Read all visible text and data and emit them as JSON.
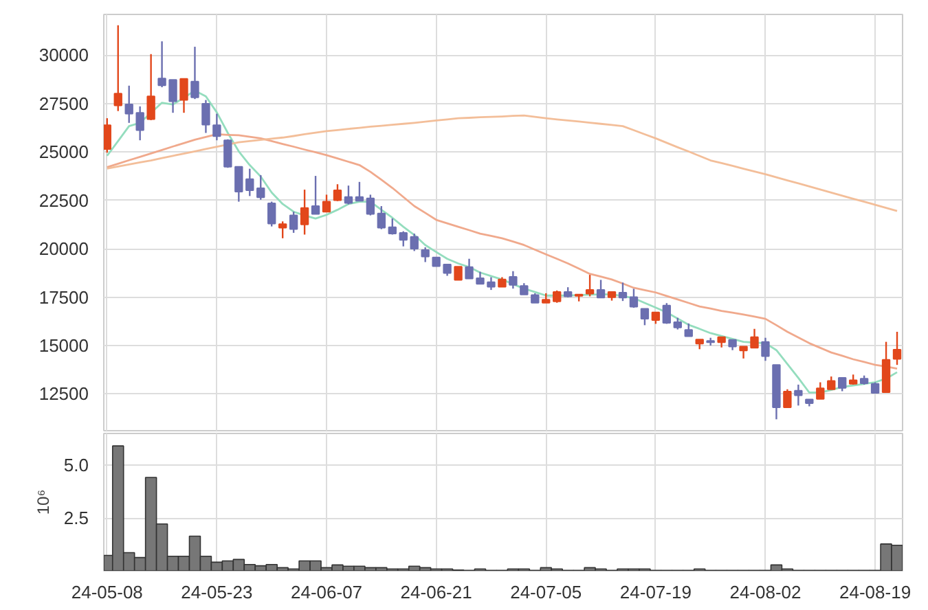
{
  "chart_data": [
    {
      "type": "candlestick",
      "categories": [
        null,
        null,
        null,
        null,
        null,
        null,
        null,
        null,
        null,
        null,
        null,
        null,
        null,
        null,
        null,
        null,
        null,
        null,
        null,
        null,
        null,
        null,
        null,
        null,
        null,
        null,
        null,
        null,
        null,
        null,
        null,
        null,
        null,
        null,
        null,
        null,
        null,
        null,
        null,
        null,
        null,
        null,
        null,
        null,
        null,
        null,
        null,
        null,
        null,
        null,
        null,
        null,
        null,
        null,
        null,
        null,
        null,
        null,
        null,
        null,
        null,
        null,
        null,
        null,
        null,
        null,
        null,
        null,
        null,
        null,
        null,
        null,
        null
      ],
      "ohlc": [
        [
          25150,
          26740,
          24960,
          26380
        ],
        [
          27400,
          31540,
          27110,
          28010
        ],
        [
          27450,
          28420,
          26500,
          26970
        ],
        [
          27020,
          27350,
          25600,
          26120
        ],
        [
          26690,
          30050,
          26640,
          27870
        ],
        [
          28790,
          30710,
          28340,
          28440
        ],
        [
          28720,
          28720,
          27020,
          27610
        ],
        [
          27680,
          28770,
          27020,
          28770
        ],
        [
          28630,
          30430,
          27730,
          27820
        ],
        [
          27490,
          27680,
          25980,
          26410
        ],
        [
          26380,
          26970,
          25600,
          25810
        ],
        [
          25600,
          25650,
          24180,
          24230
        ],
        [
          24230,
          24230,
          22430,
          22950
        ],
        [
          23590,
          24130,
          22720,
          23020
        ],
        [
          23120,
          23800,
          22530,
          22650
        ],
        [
          22340,
          22430,
          21150,
          21300
        ],
        [
          21080,
          21410,
          20540,
          21270
        ],
        [
          21720,
          21910,
          20820,
          21010
        ],
        [
          21250,
          23050,
          20730,
          22100
        ],
        [
          22200,
          23760,
          21790,
          21790
        ],
        [
          21910,
          22790,
          21910,
          22430
        ],
        [
          22500,
          23330,
          22460,
          23020
        ],
        [
          22670,
          23260,
          22290,
          22360
        ],
        [
          22670,
          23450,
          22480,
          22480
        ],
        [
          22600,
          22790,
          21720,
          21790
        ],
        [
          21820,
          22200,
          21010,
          21080
        ],
        [
          21110,
          21560,
          20730,
          20780
        ],
        [
          20820,
          20900,
          20120,
          20450
        ],
        [
          20610,
          20780,
          19880,
          20000
        ],
        [
          19930,
          20070,
          19310,
          19590
        ],
        [
          19550,
          19550,
          19100,
          19100
        ],
        [
          19190,
          19190,
          18600,
          18740
        ],
        [
          18390,
          19070,
          18390,
          19070
        ],
        [
          19050,
          19480,
          18460,
          18460
        ],
        [
          18480,
          18810,
          18180,
          18180
        ],
        [
          18270,
          18530,
          17870,
          18030
        ],
        [
          18030,
          18530,
          18030,
          18410
        ],
        [
          18550,
          18840,
          17940,
          18130
        ],
        [
          18080,
          18220,
          17630,
          17630
        ],
        [
          17610,
          17700,
          17210,
          17210
        ],
        [
          17210,
          17700,
          17210,
          17370
        ],
        [
          17280,
          17840,
          17210,
          17770
        ],
        [
          17770,
          18010,
          17490,
          17540
        ],
        [
          17560,
          17630,
          17280,
          17630
        ],
        [
          17680,
          18650,
          17540,
          17870
        ],
        [
          17870,
          18390,
          17470,
          17470
        ],
        [
          17490,
          17770,
          17320,
          17770
        ],
        [
          17730,
          18250,
          17300,
          17470
        ],
        [
          17500,
          17930,
          16950,
          17000
        ],
        [
          16900,
          16900,
          16050,
          16380
        ],
        [
          16310,
          16710,
          16120,
          16710
        ],
        [
          17070,
          17190,
          16120,
          16170
        ],
        [
          16210,
          16430,
          15830,
          15930
        ],
        [
          15810,
          16140,
          15480,
          15480
        ],
        [
          15100,
          15310,
          14810,
          15310
        ],
        [
          15240,
          15400,
          15000,
          15170
        ],
        [
          15170,
          15430,
          14900,
          15430
        ],
        [
          15290,
          15290,
          14760,
          14950
        ],
        [
          14740,
          14950,
          14330,
          14950
        ],
        [
          14880,
          15860,
          14880,
          15430
        ],
        [
          15190,
          15400,
          14210,
          14450
        ],
        [
          14000,
          14000,
          11190,
          11810
        ],
        [
          11810,
          12740,
          11810,
          12620
        ],
        [
          12670,
          12980,
          11900,
          12430
        ],
        [
          12210,
          12210,
          11860,
          12020
        ],
        [
          12240,
          13100,
          12240,
          12790
        ],
        [
          12740,
          13400,
          12740,
          13170
        ],
        [
          13330,
          13330,
          12640,
          12810
        ],
        [
          13020,
          13500,
          12980,
          13210
        ],
        [
          13290,
          13450,
          12980,
          13050
        ],
        [
          13020,
          13100,
          12550,
          12550
        ],
        [
          12590,
          15190,
          12590,
          14260
        ],
        [
          14310,
          15710,
          14000,
          14790
        ]
      ],
      "colors": [
        "#e2471b",
        "#e2471b",
        "#6b6fb0",
        "#6b6fb0",
        "#e2471b",
        "#6b6fb0",
        "#6b6fb0",
        "#e2471b",
        "#6b6fb0",
        "#6b6fb0",
        "#6b6fb0",
        "#6b6fb0",
        "#6b6fb0",
        "#6b6fb0",
        "#6b6fb0",
        "#6b6fb0",
        "#e2471b",
        "#6b6fb0",
        "#e2471b",
        "#6b6fb0",
        "#e2471b",
        "#e2471b",
        "#6b6fb0",
        "#6b6fb0",
        "#6b6fb0",
        "#6b6fb0",
        "#6b6fb0",
        "#6b6fb0",
        "#6b6fb0",
        "#6b6fb0",
        "#6b6fb0",
        "#6b6fb0",
        "#e2471b",
        "#6b6fb0",
        "#6b6fb0",
        "#6b6fb0",
        "#e2471b",
        "#6b6fb0",
        "#6b6fb0",
        "#6b6fb0",
        "#e2471b",
        "#e2471b",
        "#6b6fb0",
        "#e2471b",
        "#e2471b",
        "#6b6fb0",
        "#e2471b",
        "#6b6fb0",
        "#6b6fb0",
        "#6b6fb0",
        "#e2471b",
        "#6b6fb0",
        "#6b6fb0",
        "#6b6fb0",
        "#e2471b",
        "#6b6fb0",
        "#e2471b",
        "#6b6fb0",
        "#e2471b",
        "#e2471b",
        "#6b6fb0",
        "#6b6fb0",
        "#e2471b",
        "#6b6fb0",
        "#6b6fb0",
        "#e2471b",
        "#e2471b",
        "#6b6fb0",
        "#e2471b",
        "#6b6fb0",
        "#6b6fb0",
        "#e2471b",
        "#e2471b"
      ],
      "series": [
        {
          "type": "line",
          "color": "#8edbbb",
          "values": [
            24800,
            25560,
            26330,
            26500,
            27020,
            27540,
            27450,
            27800,
            28160,
            27870,
            27040,
            25980,
            25030,
            24320,
            23730,
            22900,
            22310,
            21910,
            21720,
            21560,
            21750,
            22010,
            22310,
            22430,
            22430,
            22010,
            21600,
            21130,
            20710,
            20190,
            19830,
            19480,
            19240,
            19050,
            18770,
            18590,
            18410,
            18170,
            17940,
            17760,
            17580,
            17580,
            17580,
            17600,
            17630,
            17640,
            17650,
            17550,
            17450,
            17200,
            16960,
            16710,
            16390,
            16070,
            15860,
            15640,
            15490,
            15340,
            15190,
            15150,
            15120,
            14760,
            14050,
            13330,
            12570,
            12570,
            12710,
            12860,
            12940,
            13020,
            13100,
            13290,
            13620
          ]
        },
        {
          "type": "line",
          "color": "#efa486",
          "values": [
            24210,
            24390,
            24570,
            24740,
            24920,
            25100,
            25280,
            25450,
            25630,
            25770,
            25910,
            25880,
            25860,
            25780,
            25700,
            25560,
            25410,
            25270,
            25120,
            24980,
            24830,
            24660,
            24490,
            24320,
            23970,
            23560,
            23140,
            22670,
            22200,
            21850,
            21490,
            21310,
            21130,
            20960,
            20780,
            20660,
            20540,
            20370,
            20190,
            19950,
            19710,
            19480,
            19240,
            18970,
            18700,
            18560,
            18410,
            18200,
            17980,
            17860,
            17740,
            17560,
            17380,
            17200,
            17020,
            16910,
            16790,
            16700,
            16600,
            16490,
            16380,
            16050,
            15710,
            15420,
            15120,
            14880,
            14640,
            14470,
            14290,
            14150,
            14000,
            13910,
            13810
          ]
        },
        {
          "type": "line",
          "color": "#f2bb94",
          "values": [
            24140,
            24250,
            24350,
            24460,
            24560,
            24680,
            24800,
            24910,
            25030,
            25150,
            25270,
            25380,
            25500,
            25560,
            25620,
            25680,
            25740,
            25820,
            25910,
            25990,
            26070,
            26130,
            26190,
            26240,
            26300,
            26350,
            26400,
            26450,
            26500,
            26560,
            26620,
            26680,
            26740,
            26760,
            26790,
            26810,
            26830,
            26860,
            26880,
            26810,
            26740,
            26680,
            26620,
            26570,
            26510,
            26450,
            26390,
            26330,
            26120,
            25910,
            25700,
            25470,
            25240,
            25020,
            24790,
            24560,
            24420,
            24280,
            24130,
            23990,
            23850,
            23690,
            23530,
            23380,
            23220,
            23060,
            22900,
            22740,
            22580,
            22430,
            22270,
            22110,
            21950
          ]
        }
      ],
      "ylim": [
        10600,
        32100
      ],
      "yticks": [
        12500,
        15000,
        17500,
        20000,
        22500,
        25000,
        27500,
        30000
      ],
      "grid": true,
      "tick_labels": "y"
    },
    {
      "type": "bar",
      "categories": [
        "24-05-08",
        null,
        null,
        null,
        null,
        null,
        null,
        null,
        null,
        null,
        "24-05-23",
        null,
        null,
        null,
        null,
        null,
        null,
        null,
        null,
        null,
        "24-06-07",
        null,
        null,
        null,
        null,
        null,
        null,
        null,
        null,
        null,
        "24-06-21",
        null,
        null,
        null,
        null,
        null,
        null,
        null,
        null,
        null,
        "24-07-05",
        null,
        null,
        null,
        null,
        null,
        null,
        null,
        null,
        null,
        "24-07-19",
        null,
        null,
        null,
        null,
        null,
        null,
        null,
        null,
        null,
        "24-08-02",
        null,
        null,
        null,
        null,
        null,
        null,
        null,
        null,
        null,
        "24-08-19",
        null,
        null
      ],
      "values": [
        0.73,
        5.91,
        0.86,
        0.63,
        4.42,
        2.22,
        0.69,
        0.69,
        1.64,
        0.69,
        0.41,
        0.47,
        0.54,
        0.3,
        0.24,
        0.3,
        0.15,
        0.09,
        0.47,
        0.47,
        0.15,
        0.28,
        0.22,
        0.22,
        0.15,
        0.15,
        0.09,
        0.09,
        0.22,
        0.15,
        0.09,
        0.09,
        0.04,
        0.02,
        0.09,
        0.02,
        0.02,
        0.09,
        0.09,
        0.02,
        0.15,
        0.09,
        0.02,
        0.02,
        0.15,
        0.09,
        0.02,
        0.09,
        0.09,
        0.09,
        0.02,
        0.02,
        0.02,
        0.02,
        0.09,
        0.02,
        0.02,
        0.02,
        0.02,
        0.02,
        0.02,
        0.28,
        0.09,
        0.02,
        0.02,
        0.02,
        0.02,
        0.02,
        0.02,
        0.02,
        0.02,
        1.27,
        1.21
      ],
      "color": "#777777",
      "ylabel": "10⁶",
      "ylim": [
        0,
        6.5
      ],
      "yticks": [
        2.5,
        {
          "value": 5,
          "label": "5.0"
        }
      ],
      "grid": true
    }
  ]
}
